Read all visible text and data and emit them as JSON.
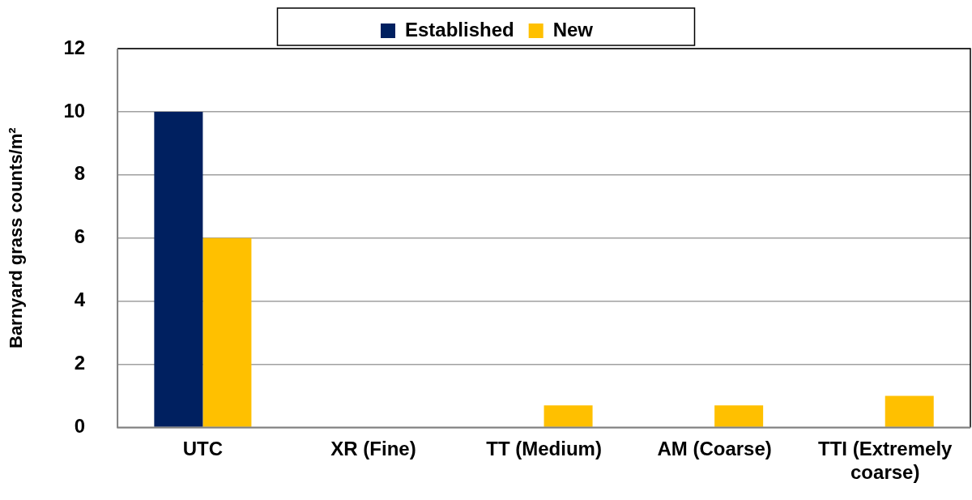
{
  "chart_data": {
    "type": "bar",
    "ylabel": "Barnyard grass counts/m²",
    "categories": [
      "UTC",
      "XR (Fine)",
      "TT (Medium)",
      "AM (Coarse)",
      "TTI (Extremely coarse)"
    ],
    "series": [
      {
        "name": "Established",
        "color": "#002060",
        "values": [
          10,
          0,
          0,
          0,
          0
        ]
      },
      {
        "name": "New",
        "color": "#ffc000",
        "values": [
          6,
          0,
          0.7,
          0.7,
          1
        ]
      }
    ],
    "ylim": [
      0,
      12
    ],
    "yticks": [
      0,
      2,
      4,
      6,
      8,
      10,
      12
    ],
    "grid": "y",
    "legend": "top"
  }
}
